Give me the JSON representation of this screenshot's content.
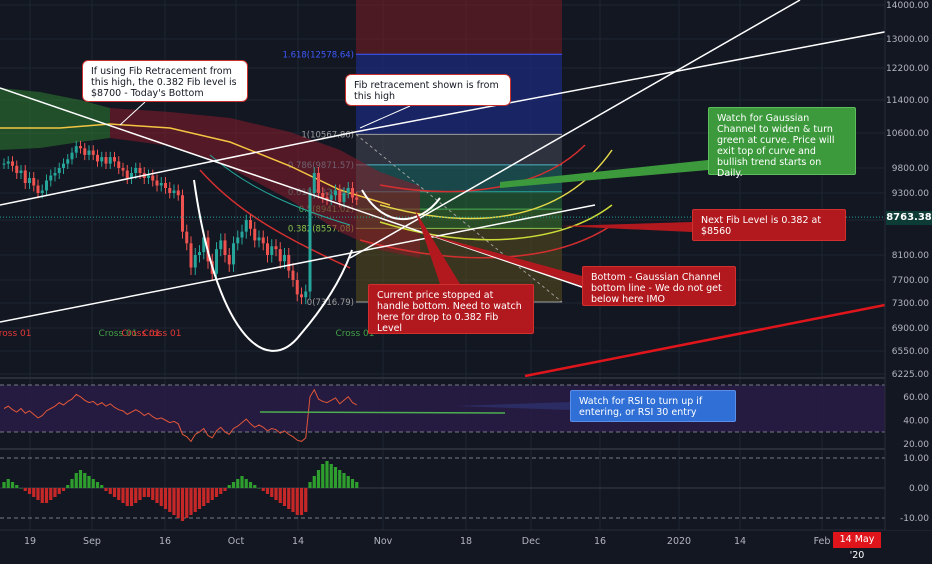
{
  "chart_data": {
    "type": "line",
    "main_price_axis": {
      "ticks": [
        14000,
        13000,
        12200,
        11400,
        10600,
        9800,
        9300,
        8700,
        8100,
        7700,
        7300,
        6900,
        6550,
        6225
      ],
      "tick_labels": [
        "14000.00",
        "13000.00",
        "12200.00",
        "11400.00",
        "10600.00",
        "9800.00",
        "9300.00",
        "8700.00",
        "8100.00",
        "7700.00",
        "7300.00",
        "6900.00",
        "6550.00",
        "6225.00"
      ],
      "current_price": 8763.38,
      "current_price_label": "8763.38"
    },
    "x_axis_labels": [
      "19",
      "Sep",
      "16",
      "Oct",
      "14",
      "Nov",
      "18",
      "Dec",
      "16",
      "2020",
      "14",
      "Feb"
    ],
    "highlighted_date": "14 May '20",
    "fib_levels": [
      {
        "label": "1.618(12578.64)",
        "value": 12578.64
      },
      {
        "label": "1(10567.86)",
        "value": 10567.86
      },
      {
        "label": "0.786(9871.57)",
        "value": 9871.57
      },
      {
        "label": "0.618(9324.95)",
        "value": 9324.95
      },
      {
        "label": "0.5(8941.02)",
        "value": 8941.02
      },
      {
        "label": "0.382(8557.08)",
        "value": 8557.08
      },
      {
        "label": "0(7316.79)",
        "value": 7316.79
      }
    ],
    "price_series": [
      9900,
      9950,
      9850,
      9700,
      9750,
      9500,
      9600,
      9450,
      9300,
      9350,
      9550,
      9650,
      9700,
      9800,
      9900,
      10000,
      10150,
      10300,
      10250,
      10100,
      10200,
      10100,
      9950,
      10050,
      9900,
      10050,
      9950,
      9800,
      9750,
      9600,
      9700,
      9800,
      9700,
      9600,
      9650,
      9550,
      9450,
      9500,
      9400,
      9300,
      9350,
      9250,
      8500,
      8300,
      7900,
      8100,
      8150,
      8400,
      8000,
      7800,
      8200,
      8350,
      8100,
      7950,
      8300,
      8400,
      8500,
      8700,
      8550,
      8350,
      8400,
      8300,
      8100,
      8250,
      8200,
      8000,
      8100,
      7850,
      7700,
      7450,
      7400,
      7500,
      9300,
      9700,
      9300,
      9200,
      9150,
      9250,
      9350,
      9100,
      9300,
      9400,
      9200,
      9150
    ],
    "cross_labels": [
      "Cross 01",
      "Cross 01",
      "Cross 01",
      "Cross 01",
      "Cross 01"
    ],
    "rsi_axis": {
      "ticks": [
        60,
        40,
        20
      ],
      "tick_labels": [
        "60.00",
        "40.00",
        "20.00"
      ]
    },
    "rsi_series": [
      50,
      52,
      49,
      47,
      50,
      46,
      48,
      45,
      42,
      44,
      48,
      50,
      52,
      55,
      53,
      56,
      58,
      62,
      60,
      57,
      55,
      56,
      53,
      55,
      52,
      54,
      51,
      49,
      48,
      45,
      47,
      49,
      47,
      44,
      46,
      43,
      41,
      42,
      40,
      38,
      39,
      37,
      28,
      26,
      22,
      28,
      30,
      33,
      27,
      25,
      31,
      34,
      30,
      28,
      33,
      35,
      38,
      41,
      37,
      34,
      36,
      34,
      31,
      33,
      32,
      29,
      31,
      28,
      26,
      23,
      22,
      25,
      60,
      66,
      58,
      56,
      55,
      57,
      59,
      54,
      57,
      60,
      55,
      53
    ],
    "macd_axis": {
      "ticks": [
        10,
        0,
        -10
      ],
      "tick_labels": [
        "10.00",
        "0.00",
        "-10.00"
      ]
    },
    "macd_histogram": [
      2,
      3,
      2,
      1,
      0,
      -1,
      -2,
      -3,
      -4,
      -5,
      -5,
      -4,
      -3,
      -2,
      -1,
      1,
      3,
      5,
      6,
      5,
      4,
      3,
      2,
      1,
      -1,
      -2,
      -3,
      -4,
      -5,
      -6,
      -6,
      -5,
      -4,
      -3,
      -3,
      -4,
      -5,
      -6,
      -7,
      -8,
      -9,
      -10,
      -11,
      -10,
      -9,
      -8,
      -7,
      -6,
      -5,
      -4,
      -3,
      -2,
      -1,
      1,
      2,
      3,
      4,
      3,
      2,
      1,
      0,
      -1,
      -2,
      -3,
      -4,
      -5,
      -6,
      -7,
      -8,
      -9,
      -9,
      -8,
      2,
      4,
      6,
      8,
      9,
      8,
      7,
      6,
      5,
      4,
      3,
      2
    ],
    "annotations": [
      "If using Fib Retracement from this high, the 0.382 Fib level is $8700 - Today's Bottom",
      "Fib retracement shown is from this high",
      "Watch for Gaussian Channel to widen & turn green at curve.  Price will exit top of curve and bullish trend starts on Daily.",
      "Next Fib Level is 0.382 at $8560",
      "Bottom - Gaussian Channel bottom line - We do not get below here IMO",
      "Current price stopped at handle bottom.  Need to watch here for drop to 0.382 Fib Level",
      "Watch for RSI to turn up if entering, or RSI 30 entry"
    ]
  },
  "colors": {
    "background": "#131722",
    "up_candle": "#26a69a",
    "down_candle": "#ef5350",
    "fib_box": "#3d5afe",
    "trendline": "#ffffff",
    "red_trendline": "#e0151b",
    "rsi_line": "#e0563a",
    "rsi_band": "#2a1b47"
  }
}
